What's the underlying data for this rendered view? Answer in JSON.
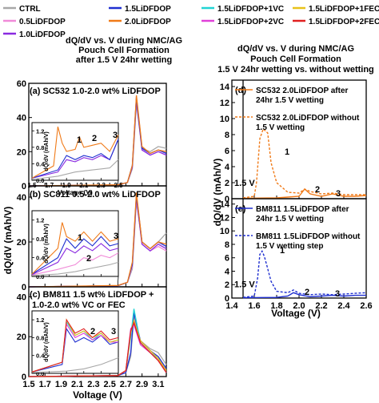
{
  "legend": {
    "items": [
      {
        "label": "CTRL",
        "color": "#a8a8a8"
      },
      {
        "label": "1.5LiDFDOP",
        "color": "#1f2fd0"
      },
      {
        "label": "1.5LiDFDOP+1VC",
        "color": "#22d4d4"
      },
      {
        "label": "1.5LiDFDOP+1FEC",
        "color": "#e8c21a"
      },
      {
        "label": "0.5LiDFDOP",
        "color": "#f08ad8"
      },
      {
        "label": "2.0LiDFDOP",
        "color": "#f07a18"
      },
      {
        "label": "1.5LiDFDOP+2VC",
        "color": "#e040d8"
      },
      {
        "label": "1.5LiDFDOP+2FEC",
        "color": "#e02020"
      },
      {
        "label": "1.0LiDFDOP",
        "color": "#8a2ae0"
      }
    ]
  },
  "left": {
    "title": [
      "dQ/dV vs. V during NMC/AG",
      "Pouch Cell Formation",
      "after 1.5 V 24hr wetting"
    ],
    "ylabel": "dQ/dV (mAh/V)",
    "xlabel": "Voltage (V)",
    "xticks": [
      "1.5",
      "1.7",
      "1.9",
      "2.1",
      "2.3",
      "2.5",
      "2.7",
      "2.9",
      "3.1"
    ],
    "panel_a": {
      "title": "(a) SC532 1.0-2.0 wt% LiDFDOP",
      "yticks": [
        "0",
        "20",
        "40",
        "60"
      ]
    },
    "panel_b": {
      "title": "(b) SC811 0.5-2.0 wt% LiDFDOP",
      "yticks": [
        "0",
        "20",
        "40"
      ]
    },
    "panel_c": {
      "title": "(c) BM811 1.5 wt% LiDFDOP +",
      "title2": "1.0-2.0 wt% VC or FEC",
      "yticks": [
        "0",
        "20",
        "40"
      ]
    },
    "inset": {
      "ylabel": "dQ/dV (mAh/V)",
      "xlabel": "Voltage (V)",
      "xticks": [
        "1.5",
        "1.7",
        "1.9",
        "2.1",
        "2.3",
        "2.5"
      ],
      "a_yticks": [
        "0.0",
        "0.4",
        "0.8",
        "1.2"
      ],
      "b_yticks": [
        "0.0",
        "0.4",
        "0.8",
        "1.2"
      ],
      "c_yticks": [
        "0.0",
        "0.4",
        "0.8",
        "1.2"
      ]
    },
    "markers": {
      "one": "1",
      "two": "2",
      "three": "3"
    }
  },
  "right": {
    "title": [
      "dQ/dV vs. V during NMC/AG",
      "Pouch Cell Formation",
      "1.5 V 24hr wetting vs. without wetting"
    ],
    "ylabel": "dQ/dV (mAh/V)",
    "xlabel": "Voltage (V)",
    "xticks": [
      "1.4",
      "1.6",
      "1.8",
      "2.0",
      "2.2",
      "2.4",
      "2.6"
    ],
    "yticks": [
      "0",
      "2",
      "4",
      "6",
      "8",
      "10",
      "12",
      "14"
    ],
    "panel_d": {
      "tag": "(d)",
      "legend1": [
        "SC532 2.0LiDFDOP after",
        "24hr 1.5 V wetting"
      ],
      "legend2": [
        "SC532 2.0LiDFDOP without",
        "1.5 V wetting"
      ],
      "vlabel": "1.5 V"
    },
    "panel_e": {
      "tag": "(e)",
      "legend1": [
        "BM811 1.5LiDFDOP after",
        "24hr 1.5 V wetting"
      ],
      "legend2": [
        "BM811 1.5LiDFDOP without",
        "1.5 V wetting step"
      ],
      "vlabel": "1.5 V"
    }
  },
  "chart_data": [
    {
      "type": "line",
      "title": "(a) SC532 1.0-2.0 wt% LiDFDOP",
      "xlabel": "Voltage (V)",
      "ylabel": "dQ/dV (mAh/V)",
      "xlim": [
        1.5,
        3.2
      ],
      "ylim": [
        0,
        60
      ],
      "series": [
        {
          "name": "CTRL",
          "x": [
            1.5,
            2.6,
            2.72,
            2.78,
            2.83,
            2.9,
            3.0,
            3.1,
            3.2
          ],
          "y": [
            0,
            0.5,
            2,
            10,
            48,
            22,
            20,
            23,
            22
          ]
        },
        {
          "name": "1.0LiDFDOP",
          "x": [
            1.5,
            2.6,
            2.72,
            2.78,
            2.83,
            2.9,
            3.0,
            3.1,
            3.2
          ],
          "y": [
            0,
            0.5,
            2,
            11,
            50,
            21,
            18,
            20,
            18
          ]
        },
        {
          "name": "1.5LiDFDOP",
          "x": [
            1.5,
            2.6,
            2.72,
            2.78,
            2.83,
            2.9,
            3.0,
            3.1,
            3.2
          ],
          "y": [
            0,
            0.5,
            2,
            12,
            52,
            22,
            19,
            21,
            19
          ]
        },
        {
          "name": "2.0LiDFDOP",
          "x": [
            1.5,
            2.6,
            2.72,
            2.78,
            2.83,
            2.9,
            3.0,
            3.1,
            3.2
          ],
          "y": [
            0,
            0.6,
            2,
            12,
            53,
            23,
            19,
            21,
            20
          ]
        }
      ]
    },
    {
      "type": "line",
      "title": "(b) SC811 0.5-2.0 wt% LiDFDOP",
      "xlabel": "Voltage (V)",
      "ylabel": "dQ/dV (mAh/V)",
      "xlim": [
        1.5,
        3.2
      ],
      "ylim": [
        0,
        45
      ],
      "series": [
        {
          "name": "CTRL",
          "x": [
            1.5,
            2.6,
            2.72,
            2.78,
            2.83,
            2.9,
            3.0,
            3.1,
            3.2
          ],
          "y": [
            0,
            0.5,
            2,
            8,
            38,
            20,
            17,
            20,
            24
          ]
        },
        {
          "name": "0.5LiDFDOP",
          "x": [
            1.5,
            2.6,
            2.72,
            2.78,
            2.83,
            2.9,
            3.0,
            3.1,
            3.2
          ],
          "y": [
            0,
            0.5,
            2,
            9,
            39,
            19,
            16,
            18,
            16
          ]
        },
        {
          "name": "1.0LiDFDOP",
          "x": [
            1.5,
            2.6,
            2.72,
            2.78,
            2.83,
            2.9,
            3.0,
            3.1,
            3.2
          ],
          "y": [
            0,
            0.5,
            2,
            10,
            40,
            19,
            16,
            19,
            17
          ]
        },
        {
          "name": "1.5LiDFDOP",
          "x": [
            1.5,
            2.6,
            2.72,
            2.78,
            2.83,
            2.9,
            3.0,
            3.1,
            3.2
          ],
          "y": [
            0,
            0.5,
            2,
            10,
            41,
            20,
            17,
            20,
            18
          ]
        },
        {
          "name": "2.0LiDFDOP",
          "x": [
            1.5,
            2.6,
            2.72,
            2.78,
            2.83,
            2.9,
            3.0,
            3.1,
            3.2
          ],
          "y": [
            0,
            0.6,
            2,
            11,
            42,
            20,
            17,
            20,
            19
          ]
        }
      ]
    },
    {
      "type": "line",
      "title": "(c) BM811 1.5 wt% LiDFDOP + 1.0-2.0 wt% VC or FEC",
      "xlabel": "Voltage (V)",
      "ylabel": "dQ/dV (mAh/V)",
      "xlim": [
        1.5,
        3.2
      ],
      "ylim": [
        0,
        45
      ],
      "series": [
        {
          "name": "CTRL",
          "x": [
            1.5,
            2.6,
            2.7,
            2.76,
            2.8,
            2.88,
            3.0,
            3.1,
            3.2
          ],
          "y": [
            0,
            0.5,
            2,
            10,
            30,
            18,
            14,
            12,
            6
          ]
        },
        {
          "name": "1.5LiDFDOP",
          "x": [
            1.5,
            2.6,
            2.7,
            2.76,
            2.8,
            2.88,
            3.0,
            3.1,
            3.2
          ],
          "y": [
            0,
            0.5,
            2,
            12,
            32,
            18,
            13,
            10,
            4
          ]
        },
        {
          "name": "1.5LiDFDOP+1VC",
          "x": [
            1.5,
            2.6,
            2.7,
            2.76,
            2.8,
            2.88,
            3.0,
            3.1,
            3.2
          ],
          "y": [
            0,
            0.5,
            3,
            20,
            34,
            17,
            12,
            9,
            2
          ]
        },
        {
          "name": "1.5LiDFDOP+2VC",
          "x": [
            1.5,
            2.6,
            2.7,
            2.76,
            2.8,
            2.88,
            3.0,
            3.1,
            3.2
          ],
          "y": [
            0,
            0.5,
            3,
            24,
            26,
            16,
            12,
            8,
            2
          ]
        },
        {
          "name": "1.5LiDFDOP+1FEC",
          "x": [
            1.5,
            2.6,
            2.7,
            2.76,
            2.8,
            2.88,
            3.0,
            3.1,
            3.2
          ],
          "y": [
            0,
            0.5,
            3,
            22,
            28,
            18,
            13,
            9,
            3
          ]
        },
        {
          "name": "1.5LiDFDOP+2FEC",
          "x": [
            1.5,
            2.6,
            2.7,
            2.76,
            2.8,
            2.88,
            3.0,
            3.1,
            3.2
          ],
          "y": [
            0,
            0.5,
            3,
            23,
            27,
            17,
            12,
            8,
            2
          ]
        }
      ]
    },
    {
      "type": "line",
      "title": "(d)",
      "xlabel": "Voltage (V)",
      "ylabel": "dQ/dV (mAh/V)",
      "xlim": [
        1.4,
        2.6
      ],
      "ylim": [
        0,
        14
      ],
      "series": [
        {
          "name": "SC532 2.0LiDFDOP after 24hr 1.5 V wetting",
          "x": [
            1.5,
            1.8,
            1.9,
            2.0,
            2.05,
            2.1,
            2.2,
            2.3,
            2.4,
            2.5,
            2.6
          ],
          "y": [
            0.05,
            0.1,
            0.2,
            0.3,
            1.2,
            0.6,
            0.3,
            0.6,
            0.3,
            0.3,
            0.4
          ]
        },
        {
          "name": "SC532 2.0LiDFDOP without 1.5 V wetting",
          "x": [
            1.5,
            1.6,
            1.62,
            1.65,
            1.68,
            1.72,
            1.75,
            1.8,
            1.9,
            2.0,
            2.05,
            2.1,
            2.2,
            2.3,
            2.4,
            2.5,
            2.6
          ],
          "y": [
            0.1,
            0.3,
            2.0,
            7.5,
            8.7,
            8.2,
            4.5,
            2.0,
            0.8,
            0.7,
            1.2,
            0.9,
            0.6,
            0.7,
            0.5,
            0.5,
            0.5
          ]
        }
      ]
    },
    {
      "type": "line",
      "title": "(e)",
      "xlabel": "Voltage (V)",
      "ylabel": "dQ/dV (mAh/V)",
      "xlim": [
        1.4,
        2.6
      ],
      "ylim": [
        0,
        14
      ],
      "series": [
        {
          "name": "BM811 1.5LiDFDOP after 24hr 1.5 V wetting",
          "x": [
            1.5,
            1.8,
            1.9,
            1.95,
            2.0,
            2.1,
            2.2,
            2.3,
            2.4,
            2.5,
            2.6
          ],
          "y": [
            0.05,
            0.1,
            0.3,
            0.8,
            0.5,
            0.2,
            0.3,
            0.4,
            0.3,
            0.4,
            0.4
          ]
        },
        {
          "name": "BM811 1.5LiDFDOP without 1.5 V wetting step",
          "x": [
            1.5,
            1.6,
            1.63,
            1.65,
            1.67,
            1.69,
            1.71,
            1.75,
            1.8,
            1.9,
            1.95,
            2.0,
            2.1,
            2.2,
            2.3,
            2.4,
            2.5,
            2.6
          ],
          "y": [
            0.1,
            0.3,
            3.0,
            6.5,
            7.0,
            6.2,
            5.0,
            2.5,
            1.0,
            0.8,
            1.2,
            0.7,
            0.5,
            0.6,
            0.5,
            0.6,
            0.7,
            0.8
          ]
        }
      ]
    },
    {
      "type": "line",
      "title": "inset (a)",
      "xlabel": "Voltage (V)",
      "ylabel": "dQ/dV (mAh/V)",
      "xlim": [
        1.5,
        2.5
      ],
      "ylim": [
        0,
        1.4
      ],
      "series": [
        {
          "name": "CTRL",
          "x": [
            1.5,
            1.8,
            2.0,
            2.2,
            2.4,
            2.5
          ],
          "y": [
            0.02,
            0.1,
            0.2,
            0.25,
            0.3,
            0.5
          ]
        },
        {
          "name": "1.0LiDFDOP",
          "x": [
            1.5,
            1.8,
            1.9,
            2.0,
            2.1,
            2.2,
            2.3,
            2.4,
            2.5
          ],
          "y": [
            0.05,
            0.2,
            0.5,
            0.45,
            0.55,
            0.5,
            0.6,
            0.5,
            1.0
          ]
        },
        {
          "name": "1.5LiDFDOP",
          "x": [
            1.5,
            1.8,
            1.9,
            2.0,
            2.1,
            2.2,
            2.3,
            2.4,
            2.5
          ],
          "y": [
            0.05,
            0.25,
            0.6,
            0.5,
            0.6,
            0.55,
            0.65,
            0.5,
            1.0
          ]
        },
        {
          "name": "2.0LiDFDOP",
          "x": [
            1.5,
            1.75,
            1.8,
            1.85,
            1.9,
            2.0,
            2.05,
            2.1,
            2.2,
            2.3,
            2.4,
            2.5
          ],
          "y": [
            0.05,
            0.35,
            1.3,
            0.9,
            0.7,
            0.75,
            1.05,
            0.8,
            0.85,
            0.9,
            0.7,
            1.1
          ]
        }
      ]
    },
    {
      "type": "line",
      "title": "inset (b)",
      "xlabel": "Voltage (V)",
      "ylabel": "dQ/dV (mAh/V)",
      "xlim": [
        1.5,
        2.5
      ],
      "ylim": [
        0,
        1.4
      ],
      "series": [
        {
          "name": "CTRL",
          "x": [
            1.5,
            1.8,
            2.0,
            2.2,
            2.4,
            2.5
          ],
          "y": [
            0.02,
            0.05,
            0.1,
            0.18,
            0.25,
            0.3
          ]
        },
        {
          "name": "0.5LiDFDOP",
          "x": [
            1.5,
            1.8,
            2.0,
            2.1,
            2.2,
            2.3,
            2.4,
            2.5
          ],
          "y": [
            0.03,
            0.15,
            0.25,
            0.4,
            0.35,
            0.45,
            0.4,
            0.5
          ]
        },
        {
          "name": "1.0LiDFDOP",
          "x": [
            1.5,
            1.8,
            1.9,
            2.0,
            2.1,
            2.2,
            2.3,
            2.4,
            2.5
          ],
          "y": [
            0.04,
            0.3,
            0.6,
            0.5,
            0.65,
            0.55,
            0.7,
            0.55,
            0.6
          ]
        },
        {
          "name": "1.5LiDFDOP",
          "x": [
            1.5,
            1.8,
            1.9,
            2.0,
            2.1,
            2.2,
            2.3,
            2.4,
            2.5
          ],
          "y": [
            0.05,
            0.4,
            0.8,
            0.6,
            0.8,
            0.65,
            0.85,
            0.65,
            0.7
          ]
        },
        {
          "name": "2.0LiDFDOP",
          "x": [
            1.5,
            1.8,
            1.85,
            1.9,
            2.0,
            2.1,
            2.2,
            2.3,
            2.4,
            2.5
          ],
          "y": [
            0.05,
            0.6,
            1.15,
            0.85,
            0.75,
            0.95,
            0.75,
            0.95,
            0.75,
            0.8
          ]
        }
      ]
    },
    {
      "type": "line",
      "title": "inset (c)",
      "xlabel": "Voltage (V)",
      "ylabel": "dQ/dV (mAh/V)",
      "xlim": [
        1.5,
        2.5
      ],
      "ylim": [
        0,
        1.4
      ],
      "series": [
        {
          "name": "CTRL",
          "x": [
            1.5,
            1.9,
            2.1,
            2.3,
            2.5
          ],
          "y": [
            0.02,
            0.05,
            0.1,
            0.2,
            0.35
          ]
        },
        {
          "name": "1.5LiDFDOP",
          "x": [
            1.5,
            1.85,
            1.9,
            2.0,
            2.1,
            2.2,
            2.3,
            2.4,
            2.5
          ],
          "y": [
            0.03,
            0.2,
            1.0,
            0.7,
            0.8,
            0.7,
            0.85,
            0.65,
            0.7
          ]
        },
        {
          "name": "1.5LiDFDOP+1VC",
          "x": [
            1.5,
            1.85,
            1.9,
            2.0,
            2.1,
            2.2,
            2.3,
            2.4,
            2.5
          ],
          "y": [
            0.03,
            0.25,
            1.15,
            0.85,
            0.95,
            0.75,
            0.9,
            0.7,
            0.75
          ]
        },
        {
          "name": "1.5LiDFDOP+2VC",
          "x": [
            1.5,
            1.85,
            1.9,
            2.0,
            2.1,
            2.2,
            2.3,
            2.4,
            2.5
          ],
          "y": [
            0.03,
            0.25,
            1.1,
            0.8,
            0.9,
            0.75,
            0.85,
            0.7,
            0.7
          ]
        },
        {
          "name": "1.5LiDFDOP+1FEC",
          "x": [
            1.5,
            1.85,
            1.9,
            2.0,
            2.1,
            2.2,
            2.3,
            2.4,
            2.5
          ],
          "y": [
            0.03,
            0.25,
            1.2,
            0.85,
            0.95,
            0.8,
            0.9,
            0.7,
            0.75
          ]
        },
        {
          "name": "1.5LiDFDOP+2FEC",
          "x": [
            1.5,
            1.85,
            1.9,
            2.0,
            2.1,
            2.2,
            2.3,
            2.4,
            2.5
          ],
          "y": [
            0.03,
            0.25,
            1.2,
            0.9,
            1.0,
            0.8,
            0.95,
            0.75,
            0.8
          ]
        }
      ]
    }
  ]
}
